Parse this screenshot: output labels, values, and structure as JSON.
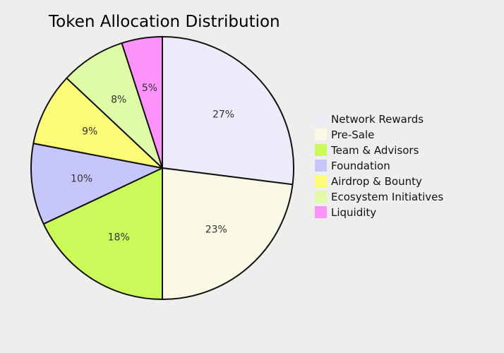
{
  "chart_data": {
    "type": "pie",
    "title": "Token Allocation Distribution",
    "categories": [
      "Network Rewards",
      "Pre-Sale",
      "Team & Advisors",
      "Foundation",
      "Airdrop & Bounty",
      "Ecosystem Initiatives",
      "Liquidity"
    ],
    "values": [
      27,
      23,
      18,
      10,
      9,
      8,
      5
    ],
    "labels": [
      "27%",
      "23%",
      "18%",
      "10%",
      "9%",
      "8%",
      "5%"
    ],
    "colors": [
      "#ecebfa",
      "#f9f9e5",
      "#c9fa5a",
      "#c6c6fa",
      "#fbfb77",
      "#e0fba8",
      "#fb93fb"
    ],
    "start_angle_deg": 0,
    "direction": "clockwise",
    "legend_position": "right"
  }
}
